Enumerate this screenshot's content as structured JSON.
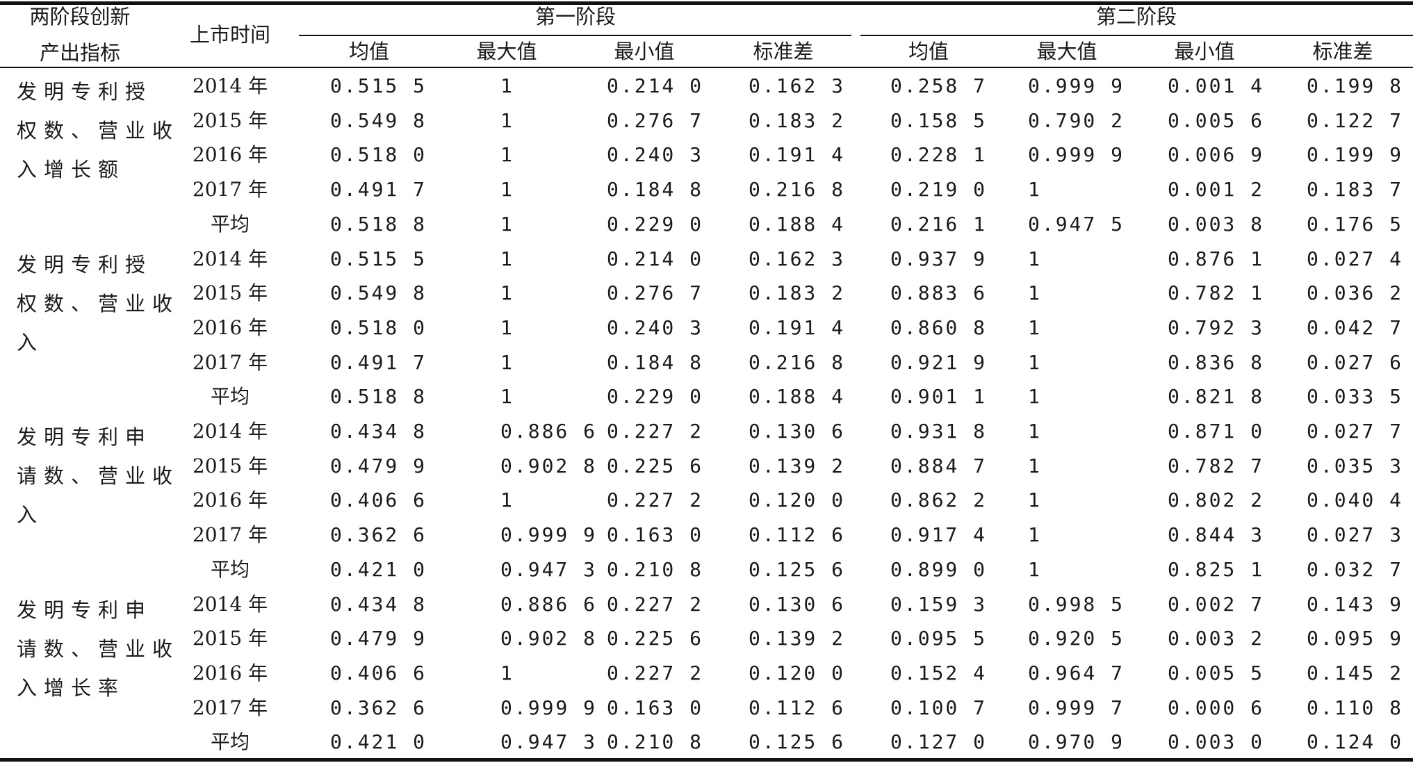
{
  "header": {
    "indicator_line1": "两阶段创新",
    "indicator_line2": "产出指标",
    "listing_time": "上市时间",
    "stage1": "第一阶段",
    "stage2": "第二阶段",
    "stats": [
      "均值",
      "最大值",
      "最小值",
      "标准差"
    ]
  },
  "groups": [
    {
      "indicator_lines": [
        "发明专利授",
        "权数、营业收",
        "入增长额"
      ],
      "rows": [
        {
          "year": "2014 年",
          "v": [
            "0.515 5",
            "1",
            "0.214 0",
            "0.162 3",
            "0.258 7",
            "0.999 9",
            "0.001 4",
            "0.199 8"
          ]
        },
        {
          "year": "2015 年",
          "v": [
            "0.549 8",
            "1",
            "0.276 7",
            "0.183 2",
            "0.158 5",
            "0.790 2",
            "0.005 6",
            "0.122 7"
          ]
        },
        {
          "year": "2016 年",
          "v": [
            "0.518 0",
            "1",
            "0.240 3",
            "0.191 4",
            "0.228 1",
            "0.999 9",
            "0.006 9",
            "0.199 9"
          ]
        },
        {
          "year": "2017 年",
          "v": [
            "0.491 7",
            "1",
            "0.184 8",
            "0.216 8",
            "0.219 0",
            "1",
            "0.001 2",
            "0.183 7"
          ]
        },
        {
          "year": "平均",
          "v": [
            "0.518 8",
            "1",
            "0.229 0",
            "0.188 4",
            "0.216 1",
            "0.947 5",
            "0.003 8",
            "0.176 5"
          ]
        }
      ]
    },
    {
      "indicator_lines": [
        "发明专利授",
        "权数、营业收",
        "入"
      ],
      "rows": [
        {
          "year": "2014 年",
          "v": [
            "0.515 5",
            "1",
            "0.214 0",
            "0.162 3",
            "0.937 9",
            "1",
            "0.876 1",
            "0.027 4"
          ]
        },
        {
          "year": "2015 年",
          "v": [
            "0.549 8",
            "1",
            "0.276 7",
            "0.183 2",
            "0.883 6",
            "1",
            "0.782 1",
            "0.036 2"
          ]
        },
        {
          "year": "2016 年",
          "v": [
            "0.518 0",
            "1",
            "0.240 3",
            "0.191 4",
            "0.860 8",
            "1",
            "0.792 3",
            "0.042 7"
          ]
        },
        {
          "year": "2017 年",
          "v": [
            "0.491 7",
            "1",
            "0.184 8",
            "0.216 8",
            "0.921 9",
            "1",
            "0.836 8",
            "0.027 6"
          ]
        },
        {
          "year": "平均",
          "v": [
            "0.518 8",
            "1",
            "0.229 0",
            "0.188 4",
            "0.901 1",
            "1",
            "0.821 8",
            "0.033 5"
          ]
        }
      ]
    },
    {
      "indicator_lines": [
        "发明专利申",
        "请数、营业收",
        "入"
      ],
      "rows": [
        {
          "year": "2014 年",
          "v": [
            "0.434 8",
            "0.886 6",
            "0.227 2",
            "0.130 6",
            "0.931 8",
            "1",
            "0.871 0",
            "0.027 7"
          ]
        },
        {
          "year": "2015 年",
          "v": [
            "0.479 9",
            "0.902 8",
            "0.225 6",
            "0.139 2",
            "0.884 7",
            "1",
            "0.782 7",
            "0.035 3"
          ]
        },
        {
          "year": "2016 年",
          "v": [
            "0.406 6",
            "1",
            "0.227 2",
            "0.120 0",
            "0.862 2",
            "1",
            "0.802 2",
            "0.040 4"
          ]
        },
        {
          "year": "2017 年",
          "v": [
            "0.362 6",
            "0.999 9",
            "0.163 0",
            "0.112 6",
            "0.917 4",
            "1",
            "0.844 3",
            "0.027 3"
          ]
        },
        {
          "year": "平均",
          "v": [
            "0.421 0",
            "0.947 3",
            "0.210 8",
            "0.125 6",
            "0.899 0",
            "1",
            "0.825 1",
            "0.032 7"
          ]
        }
      ]
    },
    {
      "indicator_lines": [
        "发明专利申",
        "请数、营业收",
        "入增长率"
      ],
      "rows": [
        {
          "year": "2014 年",
          "v": [
            "0.434 8",
            "0.886 6",
            "0.227 2",
            "0.130 6",
            "0.159 3",
            "0.998 5",
            "0.002 7",
            "0.143 9"
          ]
        },
        {
          "year": "2015 年",
          "v": [
            "0.479 9",
            "0.902 8",
            "0.225 6",
            "0.139 2",
            "0.095 5",
            "0.920 5",
            "0.003 2",
            "0.095 9"
          ]
        },
        {
          "year": "2016 年",
          "v": [
            "0.406 6",
            "1",
            "0.227 2",
            "0.120 0",
            "0.152 4",
            "0.964 7",
            "0.005 5",
            "0.145 2"
          ]
        },
        {
          "year": "2017 年",
          "v": [
            "0.362 6",
            "0.999 9",
            "0.163 0",
            "0.112 6",
            "0.100 7",
            "0.999 7",
            "0.000 6",
            "0.110 8"
          ]
        },
        {
          "year": "平均",
          "v": [
            "0.421 0",
            "0.947 3",
            "0.210 8",
            "0.125 6",
            "0.127 0",
            "0.970 9",
            "0.003 0",
            "0.124 0"
          ]
        }
      ]
    }
  ]
}
